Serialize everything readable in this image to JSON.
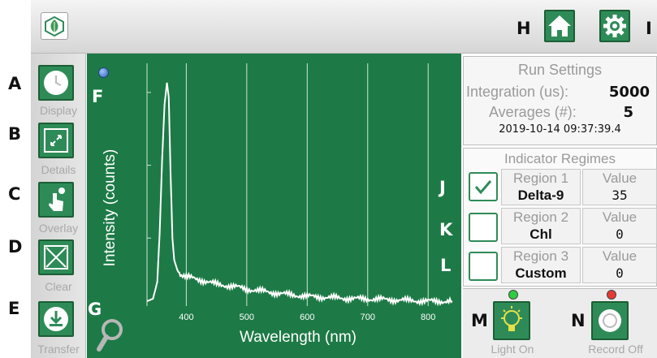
{
  "callouts": {
    "a": "A",
    "b": "B",
    "c": "C",
    "d": "D",
    "e": "E",
    "f": "F",
    "g": "G",
    "h": "H",
    "i": "I",
    "j": "J",
    "k": "K",
    "l": "L",
    "m": "M",
    "n": "N"
  },
  "sidebar": {
    "display_label": "Display",
    "details_label": "Details",
    "overlay_label": "Overlay",
    "clear_label": "Clear",
    "transfer_label": "Transfer"
  },
  "run_settings": {
    "title": "Run Settings",
    "integration_label": "Integration (us):",
    "integration_value": "5000",
    "averages_label": "Averages (#):",
    "averages_value": "5",
    "timestamp": "2019-10-14 09:37:39.4"
  },
  "indicator_regimes": {
    "title": "Indicator Regimes",
    "value_header": "Value",
    "regions": [
      {
        "label": "Region 1",
        "name": "Delta-9",
        "value": "35",
        "checked": true
      },
      {
        "label": "Region 2",
        "name": "Chl",
        "value": "0",
        "checked": false
      },
      {
        "label": "Region 3",
        "name": "Custom",
        "value": "0",
        "checked": false
      }
    ]
  },
  "actions": {
    "light_label": "Light On",
    "record_label": "Record Off",
    "light_led_color": "#2ecc40",
    "record_led_color": "#e53935"
  },
  "colors": {
    "accent": "#2e8b57",
    "plot_bg": "#1d7a46",
    "trace": "#ffffff"
  },
  "chart_data": {
    "type": "line",
    "title": "",
    "xlabel": "Wavelength (nm)",
    "ylabel": "Intensity (counts)",
    "xlim": [
      335,
      840
    ],
    "ylim": [
      0,
      1
    ],
    "xticks": [
      400,
      500,
      600,
      700,
      800
    ],
    "grid": true,
    "series": [
      {
        "x": [
          335,
          345,
          352,
          356,
          360,
          364,
          368,
          371,
          374,
          377,
          380,
          385,
          390,
          400,
          420,
          450,
          480,
          500,
          530,
          560,
          600,
          640,
          680,
          700,
          750,
          800,
          840
        ],
        "y": [
          0.02,
          0.03,
          0.1,
          0.3,
          0.6,
          0.83,
          0.92,
          0.86,
          0.55,
          0.28,
          0.19,
          0.15,
          0.13,
          0.12,
          0.11,
          0.09,
          0.08,
          0.07,
          0.06,
          0.05,
          0.04,
          0.035,
          0.03,
          0.03,
          0.025,
          0.02,
          0.02
        ]
      }
    ]
  }
}
